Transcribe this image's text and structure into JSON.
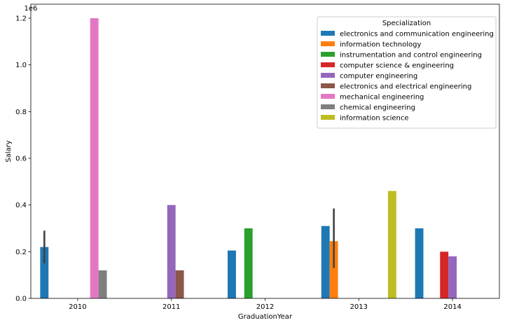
{
  "chart_data": {
    "type": "bar",
    "categories": [
      "2010",
      "2011",
      "2012",
      "2013",
      "2014"
    ],
    "xlabel": "GraduationYear",
    "ylabel": "Salary",
    "y_offset_label": "1e6",
    "ylim": [
      0,
      1260000
    ],
    "yticks": [
      {
        "value": 0,
        "label": "0.0"
      },
      {
        "value": 200000,
        "label": "0.2"
      },
      {
        "value": 400000,
        "label": "0.4"
      },
      {
        "value": 600000,
        "label": "0.6"
      },
      {
        "value": 800000,
        "label": "0.8"
      },
      {
        "value": 1000000,
        "label": "1.0"
      },
      {
        "value": 1200000,
        "label": "1.2"
      }
    ],
    "grid": false,
    "legend": {
      "title": "Specialization",
      "placement": "top-right"
    },
    "series": [
      {
        "name": "electronics and communication engineering",
        "color": "#1f77b4",
        "values": [
          220000,
          null,
          205000,
          310000,
          300000
        ],
        "errors": [
          [
            150000,
            290000
          ],
          null,
          null,
          null,
          null
        ]
      },
      {
        "name": "information technology",
        "color": "#ff7f0e",
        "values": [
          null,
          null,
          null,
          245000,
          null
        ],
        "errors": [
          null,
          null,
          null,
          [
            130000,
            385000
          ],
          null
        ]
      },
      {
        "name": "instrumentation and control engineering",
        "color": "#2ca02c",
        "values": [
          null,
          null,
          300000,
          null,
          null
        ],
        "errors": [
          null,
          null,
          null,
          null,
          null
        ]
      },
      {
        "name": "computer science & engineering",
        "color": "#d62728",
        "values": [
          null,
          null,
          null,
          null,
          200000
        ],
        "errors": [
          null,
          null,
          null,
          null,
          null
        ]
      },
      {
        "name": "computer engineering",
        "color": "#9467bd",
        "values": [
          null,
          400000,
          null,
          null,
          180000
        ],
        "errors": [
          null,
          null,
          null,
          null,
          null
        ]
      },
      {
        "name": "electronics and electrical engineering",
        "color": "#8c564b",
        "values": [
          null,
          120000,
          null,
          null,
          null
        ],
        "errors": [
          null,
          null,
          null,
          null,
          null
        ]
      },
      {
        "name": "mechanical engineering",
        "color": "#e377c2",
        "values": [
          1200000,
          null,
          null,
          null,
          null
        ],
        "errors": [
          null,
          null,
          null,
          null,
          null
        ]
      },
      {
        "name": "chemical engineering",
        "color": "#7f7f7f",
        "values": [
          120000,
          null,
          null,
          null,
          null
        ],
        "errors": [
          null,
          null,
          null,
          null,
          null
        ]
      },
      {
        "name": "information science",
        "color": "#bcbd22",
        "values": [
          null,
          null,
          null,
          460000,
          null
        ],
        "errors": [
          null,
          null,
          null,
          null,
          null
        ]
      }
    ]
  }
}
